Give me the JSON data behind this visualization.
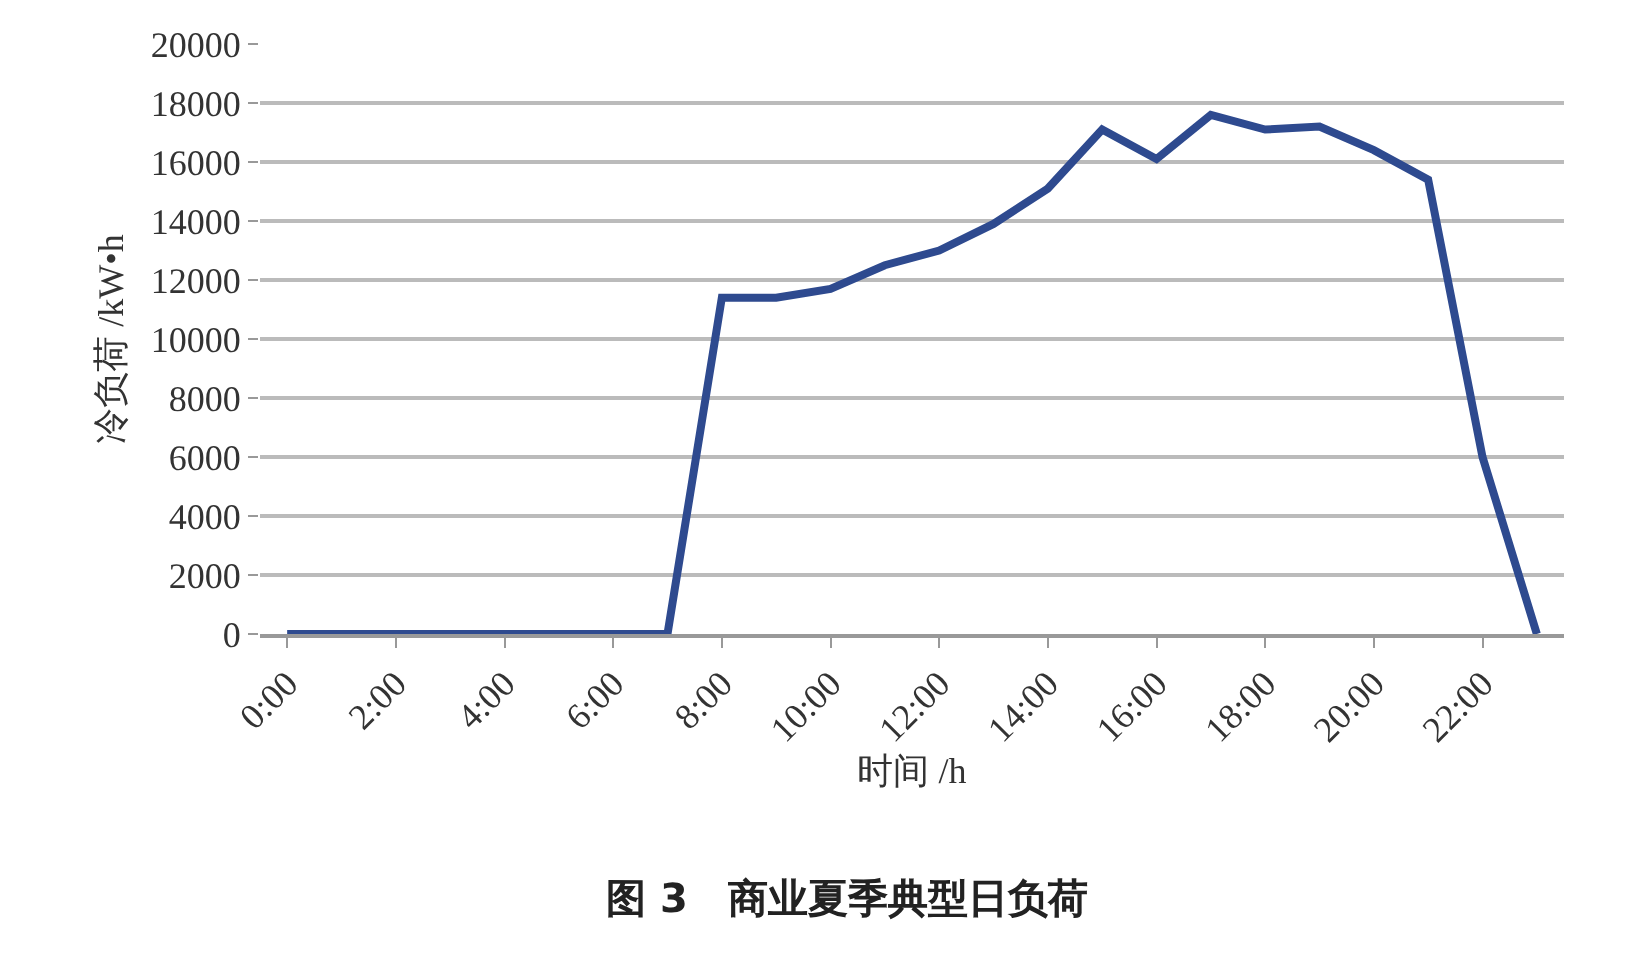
{
  "chart_data": {
    "type": "line",
    "title": "图 3　商业夏季典型日负荷",
    "xlabel": "时间 /h",
    "ylabel": "冷负荷 /kW•h",
    "categories": [
      "0:00",
      null,
      "2:00",
      null,
      "4:00",
      null,
      "6:00",
      null,
      "8:00",
      null,
      "10:00",
      null,
      "12:00",
      null,
      "14:00",
      null,
      "16:00",
      null,
      "18:00",
      null,
      "20:00",
      null,
      "22:00",
      null
    ],
    "series": [
      {
        "color": "#2e4a8f",
        "values": [
          0,
          0,
          0,
          0,
          0,
          0,
          0,
          0,
          11400,
          11400,
          11700,
          12500,
          13000,
          13900,
          15100,
          17100,
          16100,
          17600,
          17100,
          17200,
          16400,
          15400,
          6000,
          0
        ]
      }
    ],
    "ylim": [
      0,
      20000
    ],
    "yticks": [
      0,
      2000,
      4000,
      6000,
      8000,
      10000,
      12000,
      14000,
      16000,
      18000,
      20000
    ],
    "grid": "y",
    "marker": "none",
    "line_style": "solid"
  }
}
